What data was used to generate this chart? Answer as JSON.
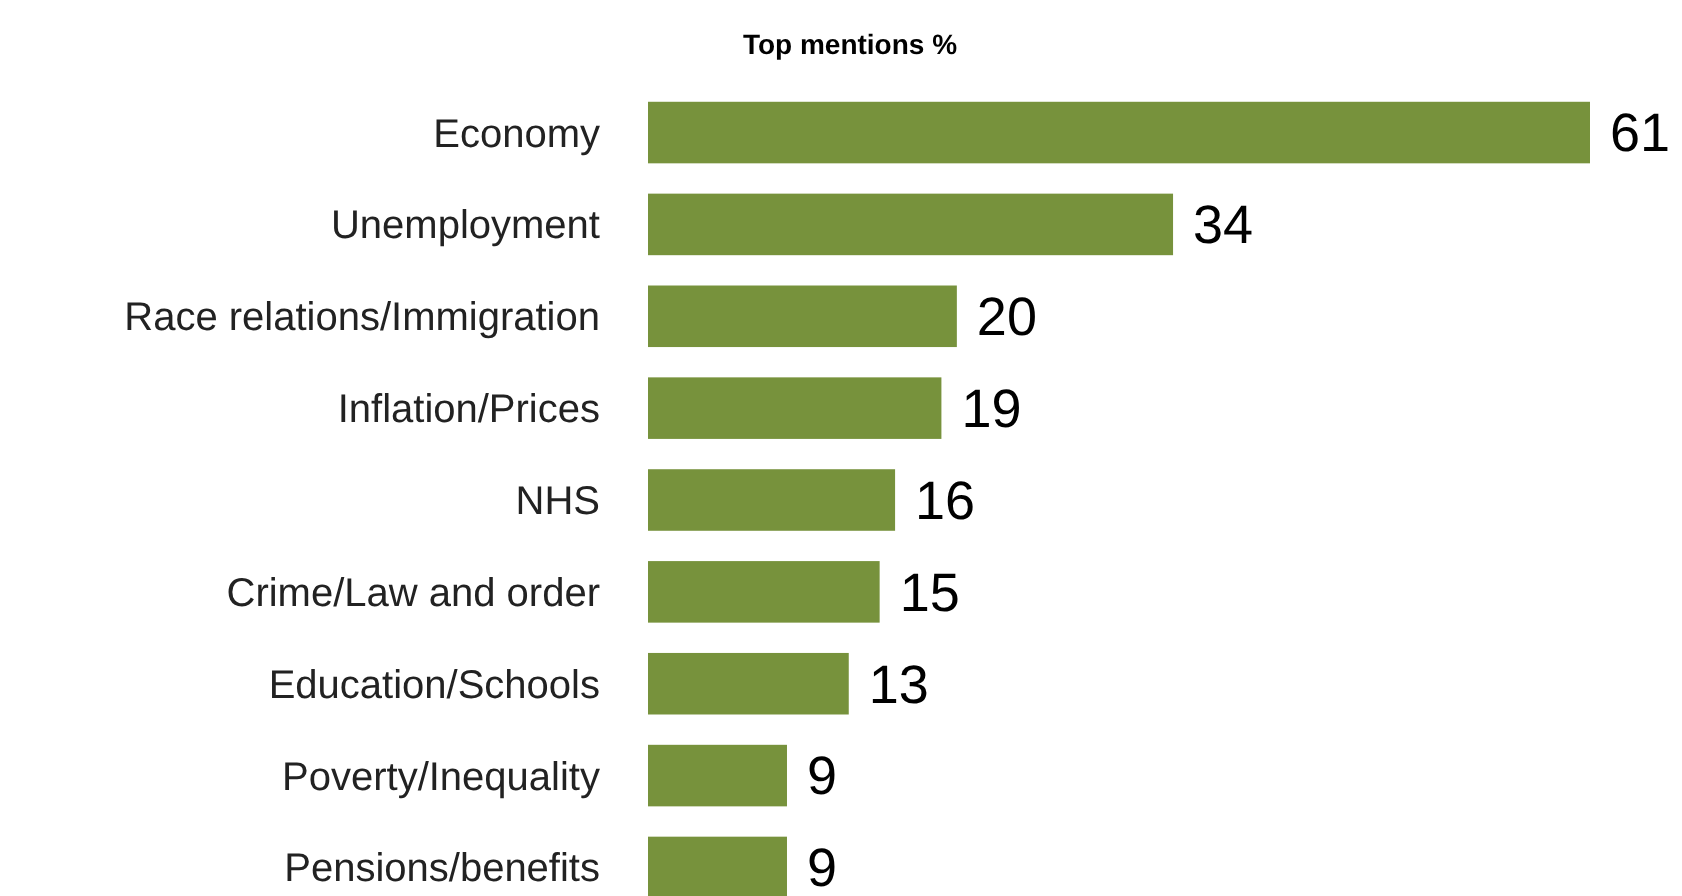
{
  "chart_data": {
    "type": "bar",
    "orientation": "horizontal",
    "title": "Top mentions %",
    "categories": [
      "Economy",
      "Unemployment",
      "Race relations/Immigration",
      "Inflation/Prices",
      "NHS",
      "Crime/Law and order",
      "Education/Schools",
      "Poverty/Inequality",
      "Pensions/benefits"
    ],
    "values": [
      61,
      34,
      20,
      19,
      16,
      15,
      13,
      9,
      9
    ],
    "color": "#77923c",
    "data_labels": true
  }
}
